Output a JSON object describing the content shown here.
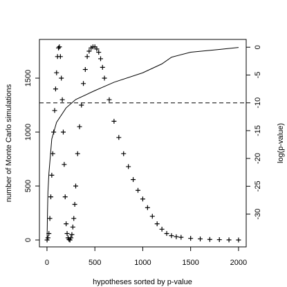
{
  "chart_data": {
    "type": "scatter",
    "xlabel": "hypotheses sorted by p-value",
    "ylabel": "number of Monte Carlo simulations",
    "y2label": "log(p-value)",
    "xlim": [
      -79,
      2080
    ],
    "ylim": [
      -64,
      1859
    ],
    "y2lim": [
      -35.9,
      1.4
    ],
    "xticks": [
      0,
      500,
      1000,
      1500,
      2000
    ],
    "yticks": [
      0,
      500,
      1000,
      1500
    ],
    "y2ticks": [
      0,
      -5,
      -10,
      -15,
      -20,
      -25,
      -30
    ],
    "series": [
      {
        "style": "points",
        "marker": "+",
        "color": "#000000",
        "x": [
          1,
          10,
          20,
          30,
          40,
          50,
          60,
          70,
          80,
          90,
          100,
          110,
          120,
          130,
          140,
          150,
          160,
          170,
          180,
          190,
          200,
          210,
          220,
          230,
          240,
          250,
          260,
          270,
          280,
          290,
          300,
          320,
          340,
          360,
          380,
          400,
          420,
          440,
          460,
          480,
          500,
          520,
          540,
          560,
          580,
          600,
          650,
          700,
          750,
          800,
          850,
          900,
          950,
          1000,
          1050,
          1100,
          1150,
          1200,
          1250,
          1300,
          1350,
          1400,
          1500,
          1600,
          1700,
          1800,
          1900,
          2000
        ],
        "values": [
          0,
          20,
          60,
          200,
          400,
          600,
          800,
          1000,
          1200,
          1400,
          1550,
          1700,
          1780,
          1790,
          1700,
          1500,
          1300,
          1000,
          700,
          400,
          150,
          60,
          20,
          5,
          0,
          20,
          50,
          120,
          200,
          330,
          500,
          800,
          1050,
          1250,
          1450,
          1580,
          1700,
          1750,
          1780,
          1790,
          1790,
          1770,
          1740,
          1680,
          1600,
          1500,
          1300,
          1100,
          950,
          800,
          680,
          560,
          460,
          380,
          300,
          220,
          150,
          100,
          60,
          40,
          30,
          25,
          15,
          10,
          5,
          3,
          1,
          0
        ]
      },
      {
        "style": "line",
        "axis": "y2",
        "color": "#000000",
        "x": [
          1,
          5,
          10,
          20,
          50,
          100,
          200,
          300,
          500,
          700,
          1000,
          1200,
          1300,
          1500,
          1800,
          2000
        ],
        "values": [
          -34.5,
          -30,
          -26,
          -22.7,
          -16.5,
          -13.5,
          -10.9,
          -9.4,
          -7.8,
          -6.3,
          -4.6,
          -3,
          -1.8,
          -0.9,
          -0.4,
          -0.05
        ]
      }
    ],
    "reference_line": {
      "value": -10,
      "axis": "y2",
      "dash": true
    }
  }
}
